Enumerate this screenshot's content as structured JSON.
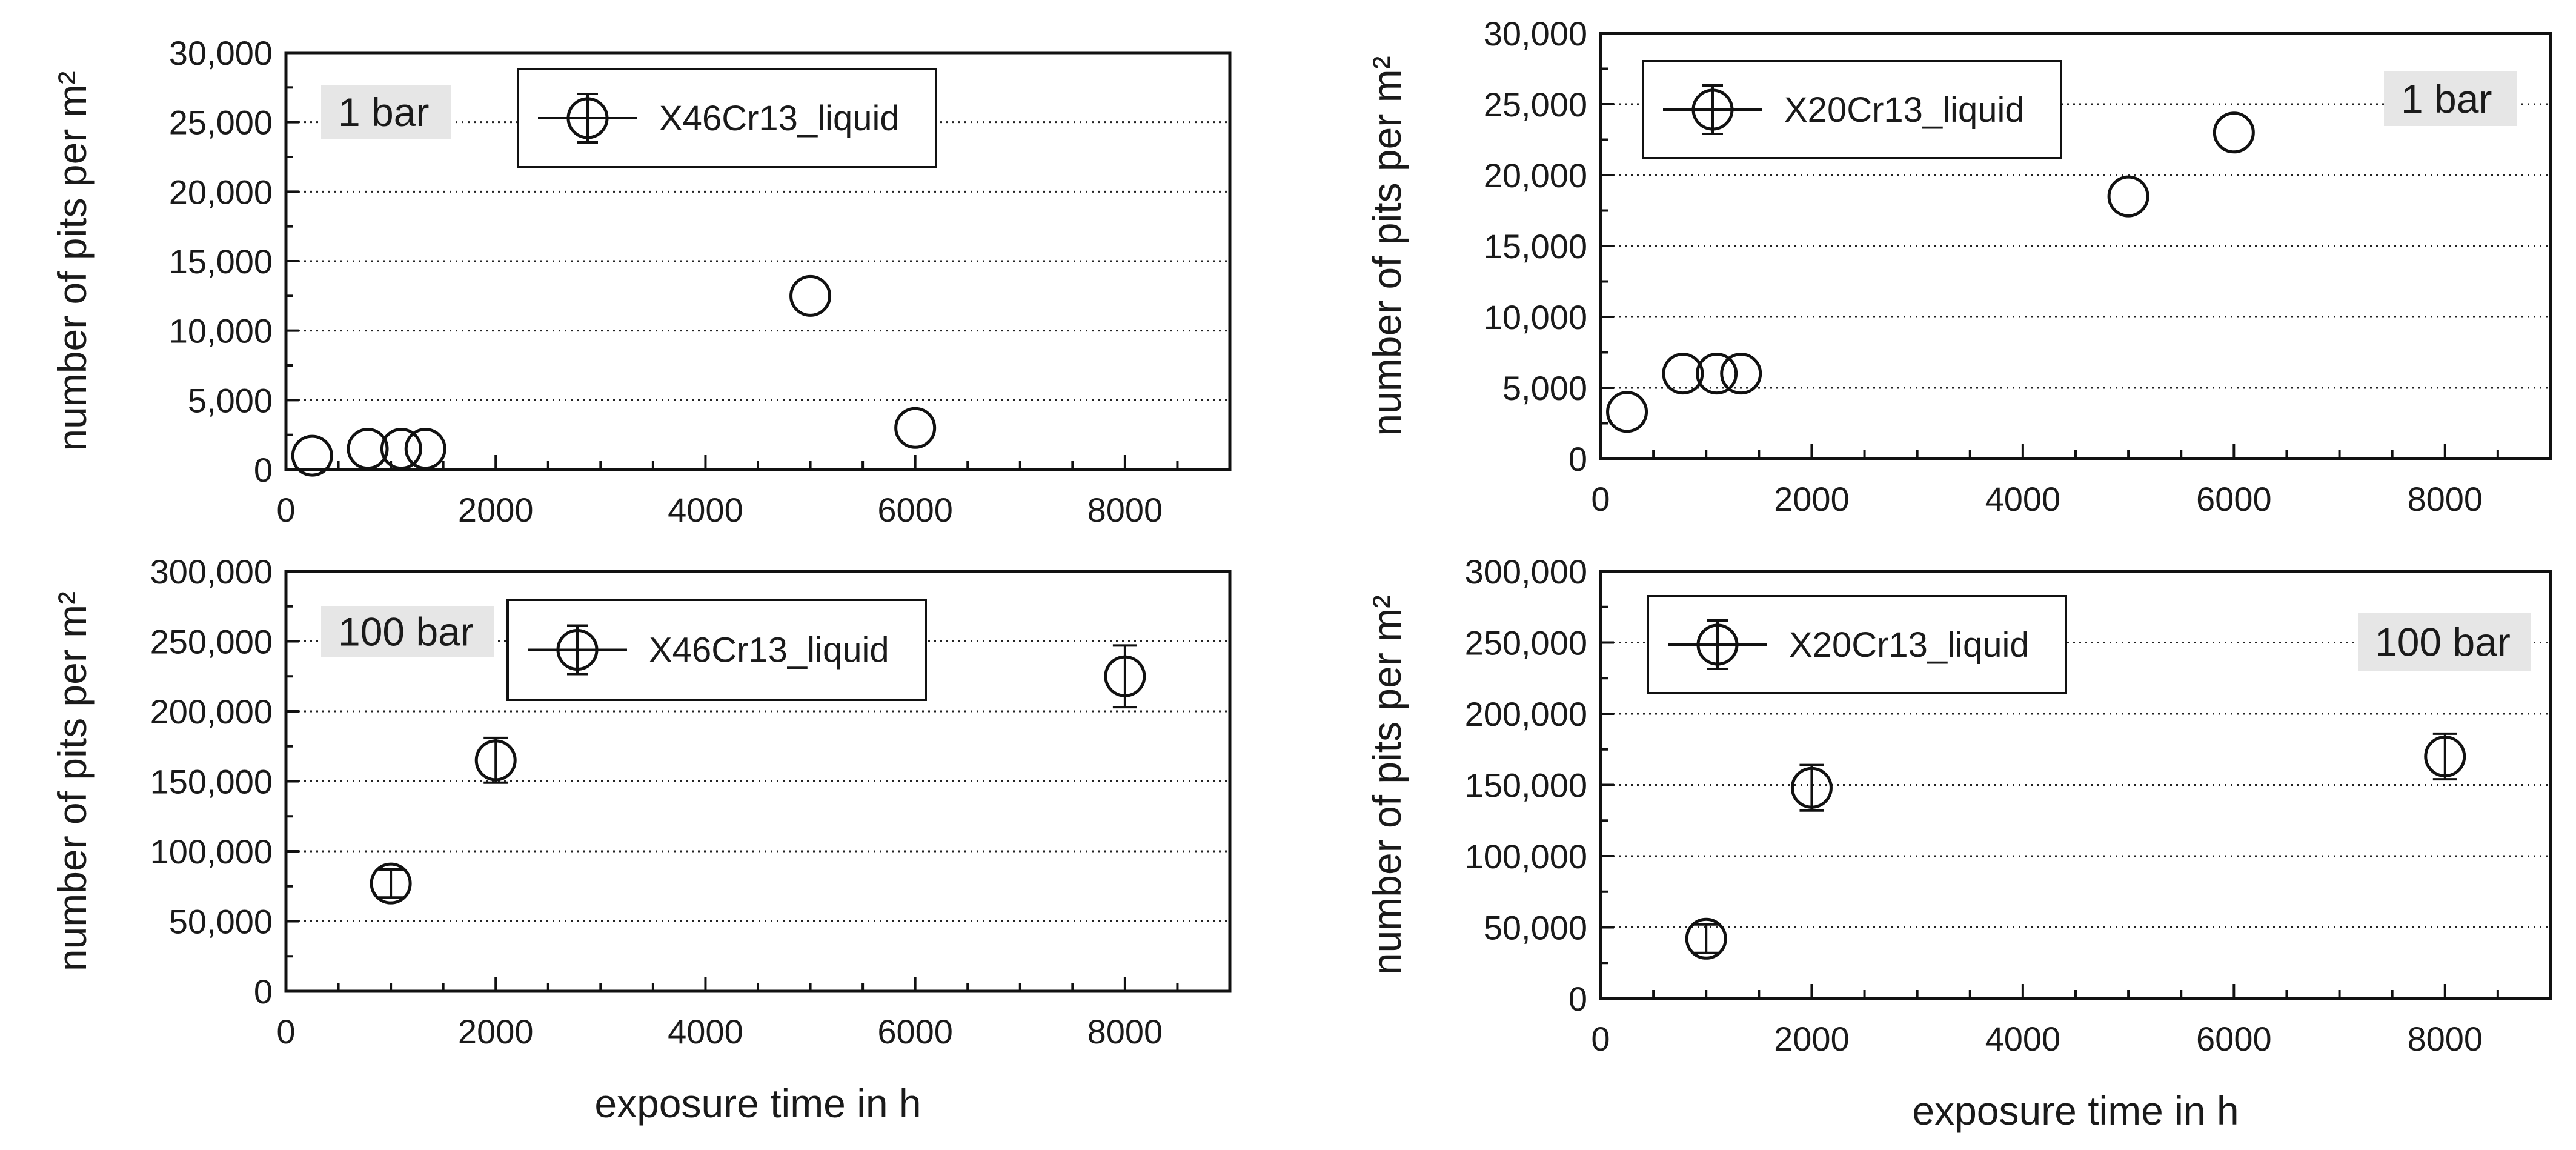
{
  "chart_data": [
    {
      "type": "scatter",
      "panel_label": "1 bar",
      "xlabel": "",
      "ylabel": "number of pits per m²",
      "xlim": [
        0,
        9000
      ],
      "ylim": [
        0,
        30000
      ],
      "x_ticks": [
        0,
        2000,
        4000,
        6000,
        8000
      ],
      "y_ticks": [
        0,
        5000,
        10000,
        15000,
        20000,
        25000,
        30000
      ],
      "x_tick_labels": [
        "0",
        "2000",
        "4000",
        "6000",
        "8000"
      ],
      "y_tick_labels": [
        "0",
        "5,000",
        "10,000",
        "15,000",
        "20,000",
        "25,000",
        "30,000"
      ],
      "grid": "horizontal dotted",
      "legend_position": "top-center",
      "series": [
        {
          "name": "X46Cr13_liquid",
          "x": [
            250,
            780,
            1100,
            1330,
            5000,
            6000
          ],
          "y": [
            1000,
            1500,
            1500,
            1500,
            12500,
            3000
          ],
          "err": [
            0,
            0,
            0,
            0,
            0,
            0
          ]
        }
      ]
    },
    {
      "type": "scatter",
      "panel_label": "1 bar",
      "xlabel": "",
      "ylabel": "number of pits per m²",
      "xlim": [
        0,
        9000
      ],
      "ylim": [
        0,
        30000
      ],
      "x_ticks": [
        0,
        2000,
        4000,
        6000,
        8000
      ],
      "y_ticks": [
        0,
        5000,
        10000,
        15000,
        20000,
        25000,
        30000
      ],
      "x_tick_labels": [
        "0",
        "2000",
        "4000",
        "6000",
        "8000"
      ],
      "y_tick_labels": [
        "0",
        "5,000",
        "10,000",
        "15,000",
        "20,000",
        "25,000",
        "30,000"
      ],
      "grid": "horizontal dotted",
      "legend_position": "top-left",
      "series": [
        {
          "name": "X20Cr13_liquid",
          "x": [
            250,
            780,
            1100,
            1330,
            5000,
            6000
          ],
          "y": [
            3300,
            6000,
            6000,
            6000,
            18500,
            23000
          ],
          "err": [
            0,
            0,
            0,
            0,
            0,
            0
          ]
        }
      ]
    },
    {
      "type": "scatter",
      "panel_label": "100 bar",
      "xlabel": "exposure time in h",
      "ylabel": "number of pits per m²",
      "xlim": [
        0,
        9000
      ],
      "ylim": [
        0,
        300000
      ],
      "x_ticks": [
        0,
        2000,
        4000,
        6000,
        8000
      ],
      "y_ticks": [
        0,
        50000,
        100000,
        150000,
        200000,
        250000,
        300000
      ],
      "x_tick_labels": [
        "0",
        "2000",
        "4000",
        "6000",
        "8000"
      ],
      "y_tick_labels": [
        "0",
        "50,000",
        "100,000",
        "150,000",
        "200,000",
        "250,000",
        "300,000"
      ],
      "grid": "horizontal dotted",
      "legend_position": "top-center",
      "series": [
        {
          "name": "X46Cr13_liquid",
          "x": [
            1000,
            2000,
            8000
          ],
          "y": [
            77000,
            165000,
            225000
          ],
          "err": [
            10000,
            16000,
            22000
          ]
        }
      ]
    },
    {
      "type": "scatter",
      "panel_label": "100 bar",
      "xlabel": "exposure time in h",
      "ylabel": "number of pits per m²",
      "xlim": [
        0,
        9000
      ],
      "ylim": [
        0,
        300000
      ],
      "x_ticks": [
        0,
        2000,
        4000,
        6000,
        8000
      ],
      "y_ticks": [
        0,
        50000,
        100000,
        150000,
        200000,
        250000,
        300000
      ],
      "x_tick_labels": [
        "0",
        "2000",
        "4000",
        "6000",
        "8000"
      ],
      "y_tick_labels": [
        "0",
        "50,000",
        "100,000",
        "150,000",
        "200,000",
        "250,000",
        "300,000"
      ],
      "grid": "horizontal dotted",
      "legend_position": "top-left",
      "series": [
        {
          "name": "X20Cr13_liquid",
          "x": [
            1000,
            2000,
            8000
          ],
          "y": [
            42000,
            148000,
            170000
          ],
          "err": [
            10000,
            16000,
            16000
          ]
        }
      ]
    }
  ]
}
